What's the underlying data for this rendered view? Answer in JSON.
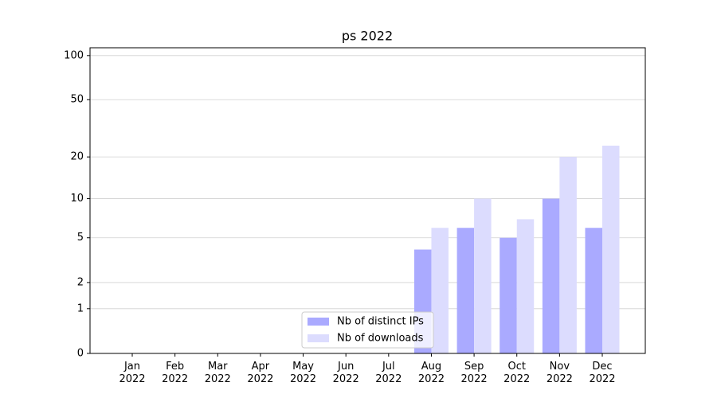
{
  "chart_data": {
    "type": "bar",
    "title": "ps 2022",
    "categories": [
      "Jan 2022",
      "Feb 2022",
      "Mar 2022",
      "Apr 2022",
      "May 2022",
      "Jun 2022",
      "Jul 2022",
      "Aug 2022",
      "Sep 2022",
      "Oct 2022",
      "Nov 2022",
      "Dec 2022"
    ],
    "series": [
      {
        "name": "Nb of distinct IPs",
        "color": "#aaaaff",
        "values": [
          0,
          0,
          0,
          0,
          0,
          0,
          0,
          4,
          6,
          5,
          10,
          6
        ]
      },
      {
        "name": "Nb of downloads",
        "color": "#dcdcfe",
        "values": [
          0,
          0,
          0,
          0,
          0,
          0,
          0,
          6,
          10,
          7,
          20,
          24
        ]
      }
    ],
    "yscale": "log1p",
    "ylim": [
      0,
      113
    ],
    "yticks": [
      0,
      1,
      2,
      5,
      10,
      20,
      50,
      100
    ],
    "grid": true,
    "legend": "lower center"
  }
}
